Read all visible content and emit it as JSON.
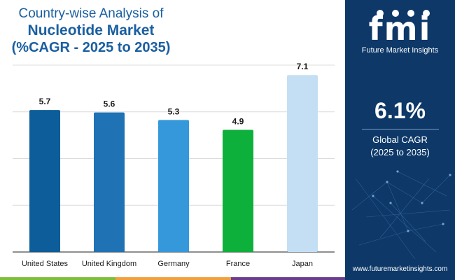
{
  "header": {
    "title_line1": "Country-wise Analysis of",
    "title_line2": "Nucleotide Market",
    "title_line3": "(%CAGR - 2025 to 2035)"
  },
  "chart_data": {
    "type": "bar",
    "categories": [
      "United States",
      "United Kingdom",
      "Germany",
      "France",
      "Japan"
    ],
    "values": [
      5.7,
      5.6,
      5.3,
      4.9,
      7.1
    ],
    "colors": [
      "#0c5d99",
      "#1f72b4",
      "#3498db",
      "#0eb03c",
      "#c4dff3"
    ],
    "value_labels": [
      "5.7",
      "5.6",
      "5.3",
      "4.9",
      "7.1"
    ],
    "ylim": [
      0,
      7.5
    ],
    "grid": true,
    "title": "",
    "xlabel": "",
    "ylabel": ""
  },
  "sidebar": {
    "logo_mark": "fmi",
    "logo_subtitle": "Future Market Insights",
    "cagr_value": "6.1%",
    "cagr_label_line1": "Global CAGR",
    "cagr_label_line2": "(2025 to 2035)",
    "website": "www.futuremarketinsights.com",
    "background_color": "#0d3868"
  },
  "theme": {
    "title_color": "#1a5fa0",
    "stripe_colors": [
      "#7dbf3a",
      "#f2a03d",
      "#6c3d8e"
    ]
  }
}
